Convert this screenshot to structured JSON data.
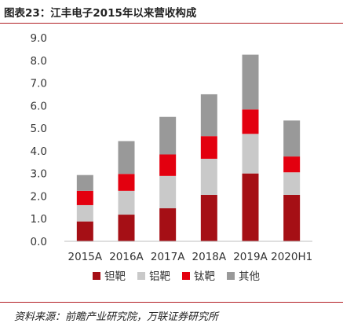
{
  "title": "图表23：江丰电子2015年以来营收构成",
  "source": "资料来源：前瞻产业研究院，万联证券研究所",
  "chart_data": {
    "type": "bar",
    "stacked": true,
    "categories": [
      "2015A",
      "2016A",
      "2017A",
      "2018A",
      "2019A",
      "2020H1"
    ],
    "series": [
      {
        "name": "钽靶",
        "color": "#a50f15",
        "values": [
          0.88,
          1.18,
          1.46,
          2.05,
          3.0,
          2.05
        ]
      },
      {
        "name": "铝靶",
        "color": "#c9c9c9",
        "values": [
          0.72,
          1.05,
          1.43,
          1.6,
          1.75,
          1.0
        ]
      },
      {
        "name": "钛靶",
        "color": "#e3000f",
        "values": [
          0.63,
          0.75,
          0.95,
          1.0,
          1.08,
          0.7
        ]
      },
      {
        "name": "其他",
        "color": "#999999",
        "values": [
          0.7,
          1.45,
          1.66,
          1.85,
          2.42,
          1.59
        ]
      }
    ],
    "ylim": [
      0,
      9
    ],
    "yticks": [
      "0.0",
      "1.0",
      "2.0",
      "3.0",
      "4.0",
      "5.0",
      "6.0",
      "7.0",
      "8.0",
      "9.0"
    ],
    "grid": false,
    "legend_position": "bottom"
  }
}
